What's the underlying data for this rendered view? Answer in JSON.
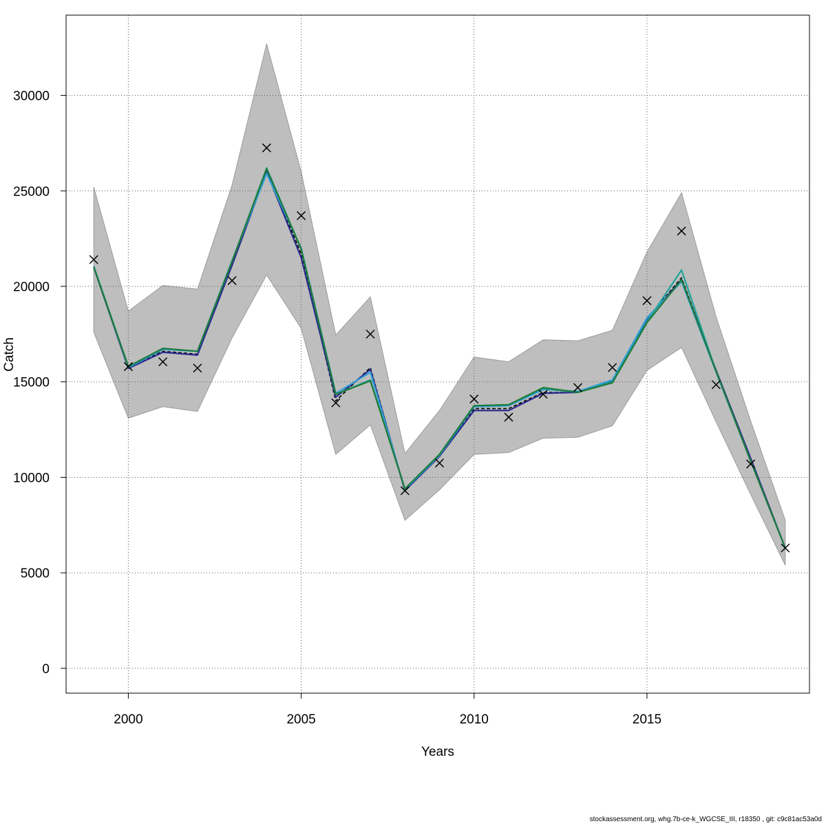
{
  "chart_data": {
    "type": "line",
    "xlabel": "Years",
    "ylabel": "Catch",
    "xlim": [
      1998.2,
      2019.7
    ],
    "ylim": [
      -1300,
      34200
    ],
    "x_ticks": [
      2000,
      2005,
      2010,
      2015
    ],
    "y_ticks": [
      0,
      5000,
      10000,
      15000,
      20000,
      25000,
      30000
    ],
    "grid": true,
    "x": [
      1999,
      2000,
      2001,
      2002,
      2003,
      2004,
      2005,
      2006,
      2007,
      2008,
      2009,
      2010,
      2011,
      2012,
      2013,
      2014,
      2015,
      2016,
      2017,
      2018,
      2019
    ],
    "confidence_band": {
      "color": "#bebebe",
      "lower": [
        17600,
        13100,
        13700,
        13450,
        17300,
        20600,
        17800,
        11200,
        12750,
        7750,
        9350,
        11200,
        11300,
        12050,
        12100,
        12700,
        15600,
        16800,
        12900,
        9100,
        5400
      ],
      "upper": [
        25200,
        18700,
        20050,
        19850,
        25300,
        32700,
        26000,
        17450,
        19450,
        11250,
        13500,
        16300,
        16050,
        17200,
        17150,
        17700,
        21800,
        24900,
        18400,
        12950,
        7750
      ]
    },
    "observed": {
      "marker": "x",
      "values": [
        21400,
        15800,
        16050,
        15720,
        20300,
        27250,
        23700,
        13900,
        17500,
        9300,
        10750,
        14100,
        13150,
        14350,
        14700,
        15750,
        19250,
        22900,
        14850,
        10700,
        6300
      ]
    },
    "series": [
      {
        "color": "#000000",
        "dashed": true,
        "values": [
          21000,
          15750,
          16600,
          16450,
          21200,
          26100,
          21700,
          14000,
          15750,
          9300,
          11100,
          13600,
          13600,
          14450,
          14450,
          15050,
          18300,
          20450,
          15600,
          10900,
          6300
        ]
      },
      {
        "color": "#2b2b8f",
        "dashed": false,
        "values": [
          21000,
          15700,
          16550,
          16400,
          21100,
          26000,
          21500,
          14200,
          15650,
          9300,
          11100,
          13500,
          13500,
          14400,
          14450,
          15000,
          18300,
          20350,
          15600,
          11000,
          6300
        ]
      },
      {
        "color": "#2e9fd6",
        "dashed": false,
        "values": [
          21050,
          15750,
          16700,
          16600,
          21350,
          25900,
          22000,
          14400,
          15500,
          9350,
          11150,
          13700,
          13750,
          14600,
          14500,
          15100,
          18350,
          20250,
          15500,
          10850,
          6300
        ]
      },
      {
        "color": "#20a39b",
        "dashed": false,
        "values": [
          21050,
          15800,
          16750,
          16600,
          21300,
          26200,
          21950,
          14350,
          15100,
          9400,
          11200,
          13750,
          13800,
          14650,
          14450,
          15000,
          18150,
          20850,
          15550,
          10850,
          6300
        ]
      },
      {
        "color": "#1f7a3a",
        "dashed": false,
        "values": [
          21000,
          15800,
          16750,
          16600,
          21300,
          26150,
          21950,
          14350,
          15050,
          9400,
          11200,
          13750,
          13800,
          14700,
          14450,
          14950,
          18100,
          20350,
          15550,
          10850,
          6300
        ]
      }
    ]
  },
  "footer": "stockassessment.org, whg.7b-ce-k_WGCSE_III, r18350 , git: c9c81ac53a0d"
}
